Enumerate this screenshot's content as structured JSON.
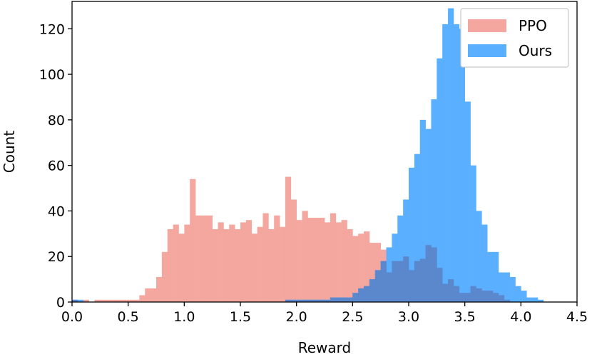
{
  "chart_data": {
    "type": "histogram",
    "xlabel": "Reward",
    "ylabel": "Count",
    "xlim": [
      0.0,
      4.5
    ],
    "ylim": [
      0,
      132
    ],
    "xticks": [
      "0.0",
      "0.5",
      "1.0",
      "1.5",
      "2.0",
      "2.5",
      "3.0",
      "3.5",
      "4.0",
      "4.5"
    ],
    "xtick_values": [
      0.0,
      0.5,
      1.0,
      1.5,
      2.0,
      2.5,
      3.0,
      3.5,
      4.0,
      4.5
    ],
    "yticks": [
      "0",
      "20",
      "40",
      "60",
      "80",
      "100",
      "120"
    ],
    "ytick_values": [
      0,
      20,
      40,
      60,
      80,
      100,
      120
    ],
    "grid": false,
    "legend_position": "top-right",
    "overlap_color": "#5b87cd",
    "series": [
      {
        "name": "PPO",
        "color": "#f4a79e",
        "bins": [
          [
            0.0,
            0.05,
            1
          ],
          [
            0.05,
            0.1,
            0
          ],
          [
            0.1,
            0.15,
            1
          ],
          [
            0.15,
            0.2,
            0
          ],
          [
            0.2,
            0.25,
            1
          ],
          [
            0.25,
            0.3,
            1
          ],
          [
            0.3,
            0.35,
            1
          ],
          [
            0.35,
            0.4,
            1
          ],
          [
            0.4,
            0.45,
            1
          ],
          [
            0.45,
            0.5,
            1
          ],
          [
            0.5,
            0.55,
            1
          ],
          [
            0.55,
            0.6,
            1
          ],
          [
            0.6,
            0.65,
            3
          ],
          [
            0.65,
            0.7,
            6
          ],
          [
            0.7,
            0.75,
            6
          ],
          [
            0.75,
            0.8,
            11
          ],
          [
            0.8,
            0.85,
            22
          ],
          [
            0.85,
            0.9,
            32
          ],
          [
            0.9,
            0.95,
            34
          ],
          [
            0.95,
            1.0,
            30
          ],
          [
            1.0,
            1.05,
            34
          ],
          [
            1.05,
            1.1,
            54
          ],
          [
            1.1,
            1.15,
            38
          ],
          [
            1.15,
            1.2,
            38
          ],
          [
            1.2,
            1.25,
            38
          ],
          [
            1.25,
            1.3,
            32
          ],
          [
            1.3,
            1.35,
            35
          ],
          [
            1.35,
            1.4,
            32
          ],
          [
            1.4,
            1.45,
            34
          ],
          [
            1.45,
            1.5,
            32
          ],
          [
            1.5,
            1.55,
            35
          ],
          [
            1.55,
            1.6,
            36
          ],
          [
            1.6,
            1.65,
            30
          ],
          [
            1.65,
            1.7,
            33
          ],
          [
            1.7,
            1.75,
            39
          ],
          [
            1.75,
            1.8,
            32
          ],
          [
            1.8,
            1.85,
            38
          ],
          [
            1.85,
            1.9,
            33
          ],
          [
            1.9,
            1.95,
            55
          ],
          [
            1.95,
            2.0,
            45
          ],
          [
            2.0,
            2.05,
            36
          ],
          [
            2.05,
            2.1,
            40
          ],
          [
            2.1,
            2.15,
            37
          ],
          [
            2.15,
            2.2,
            37
          ],
          [
            2.2,
            2.25,
            37
          ],
          [
            2.25,
            2.3,
            35
          ],
          [
            2.3,
            2.35,
            39
          ],
          [
            2.35,
            2.4,
            35
          ],
          [
            2.4,
            2.45,
            36
          ],
          [
            2.45,
            2.5,
            32
          ],
          [
            2.5,
            2.55,
            29
          ],
          [
            2.55,
            2.6,
            30
          ],
          [
            2.6,
            2.65,
            31
          ],
          [
            2.65,
            2.7,
            26
          ],
          [
            2.7,
            2.75,
            26
          ],
          [
            2.75,
            2.8,
            23
          ],
          [
            2.8,
            2.85,
            13
          ],
          [
            2.85,
            2.9,
            18
          ],
          [
            2.9,
            2.95,
            18
          ],
          [
            2.95,
            3.0,
            20
          ],
          [
            3.0,
            3.05,
            14
          ],
          [
            3.05,
            3.1,
            18
          ],
          [
            3.1,
            3.15,
            19
          ],
          [
            3.15,
            3.2,
            25
          ],
          [
            3.2,
            3.25,
            24
          ],
          [
            3.25,
            3.3,
            15
          ],
          [
            3.3,
            3.35,
            8
          ],
          [
            3.35,
            3.4,
            10
          ],
          [
            3.4,
            3.45,
            7
          ],
          [
            3.45,
            3.5,
            4
          ],
          [
            3.5,
            3.55,
            4
          ],
          [
            3.55,
            3.6,
            7
          ],
          [
            3.6,
            3.65,
            6
          ],
          [
            3.65,
            3.7,
            5
          ],
          [
            3.7,
            3.75,
            5
          ],
          [
            3.75,
            3.8,
            4
          ],
          [
            3.8,
            3.85,
            3
          ],
          [
            3.85,
            3.9,
            1
          ]
        ]
      },
      {
        "name": "Ours",
        "color": "#5aafff",
        "bins": [
          [
            0.0,
            0.05,
            1
          ],
          [
            0.05,
            0.1,
            1
          ],
          [
            1.9,
            1.95,
            1
          ],
          [
            1.95,
            2.0,
            1
          ],
          [
            2.0,
            2.05,
            1
          ],
          [
            2.05,
            2.1,
            1
          ],
          [
            2.1,
            2.15,
            1
          ],
          [
            2.15,
            2.2,
            1
          ],
          [
            2.2,
            2.25,
            1
          ],
          [
            2.25,
            2.3,
            1
          ],
          [
            2.3,
            2.35,
            2
          ],
          [
            2.35,
            2.4,
            2
          ],
          [
            2.4,
            2.45,
            2
          ],
          [
            2.45,
            2.5,
            2
          ],
          [
            2.5,
            2.55,
            4
          ],
          [
            2.55,
            2.6,
            6
          ],
          [
            2.6,
            2.65,
            7
          ],
          [
            2.65,
            2.7,
            10
          ],
          [
            2.7,
            2.75,
            14
          ],
          [
            2.75,
            2.8,
            18
          ],
          [
            2.8,
            2.85,
            24
          ],
          [
            2.85,
            2.9,
            30
          ],
          [
            2.9,
            2.95,
            38
          ],
          [
            2.95,
            3.0,
            45
          ],
          [
            3.0,
            3.05,
            59
          ],
          [
            3.05,
            3.1,
            65
          ],
          [
            3.1,
            3.15,
            80
          ],
          [
            3.15,
            3.2,
            76
          ],
          [
            3.2,
            3.25,
            89
          ],
          [
            3.25,
            3.3,
            107
          ],
          [
            3.3,
            3.35,
            122
          ],
          [
            3.35,
            3.4,
            129
          ],
          [
            3.4,
            3.45,
            122
          ],
          [
            3.45,
            3.5,
            120
          ],
          [
            3.5,
            3.55,
            88
          ],
          [
            3.55,
            3.6,
            60
          ],
          [
            3.6,
            3.65,
            40
          ],
          [
            3.65,
            3.7,
            34
          ],
          [
            3.7,
            3.75,
            22
          ],
          [
            3.75,
            3.8,
            22
          ],
          [
            3.8,
            3.85,
            13
          ],
          [
            3.85,
            3.9,
            13
          ],
          [
            3.9,
            3.95,
            11
          ],
          [
            3.95,
            4.0,
            7
          ],
          [
            4.0,
            4.05,
            5
          ],
          [
            4.05,
            4.1,
            2
          ],
          [
            4.1,
            4.15,
            2
          ],
          [
            4.15,
            4.2,
            1
          ]
        ]
      }
    ]
  }
}
